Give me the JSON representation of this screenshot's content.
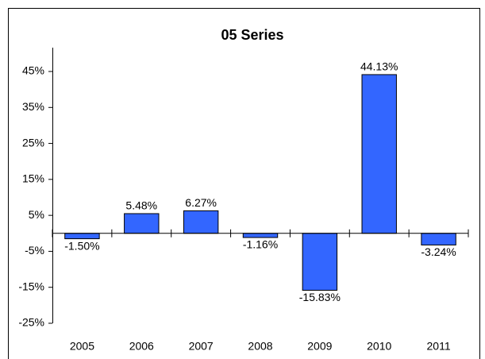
{
  "chart_data": {
    "type": "bar",
    "title": "05 Series",
    "categories": [
      "2005",
      "2006",
      "2007",
      "2008",
      "2009",
      "2010",
      "2011"
    ],
    "values": [
      -1.5,
      5.48,
      6.27,
      -1.16,
      -15.83,
      44.13,
      -3.24
    ],
    "value_labels": [
      "-1.50%",
      "5.48%",
      "6.27%",
      "-1.16%",
      "-15.83%",
      "44.13%",
      "-3.24%"
    ],
    "color": "#3366ff",
    "ylim": [
      -25,
      45
    ],
    "yticks": [
      {
        "value": -25,
        "label": "-25%"
      },
      {
        "value": -15,
        "label": "-15%"
      },
      {
        "value": -5,
        "label": "-5%"
      },
      {
        "value": 5,
        "label": "5%"
      },
      {
        "value": 15,
        "label": "15%"
      },
      {
        "value": 25,
        "label": "25%"
      },
      {
        "value": 35,
        "label": "35%"
      },
      {
        "value": 45,
        "label": "45%"
      }
    ],
    "grid": false
  }
}
